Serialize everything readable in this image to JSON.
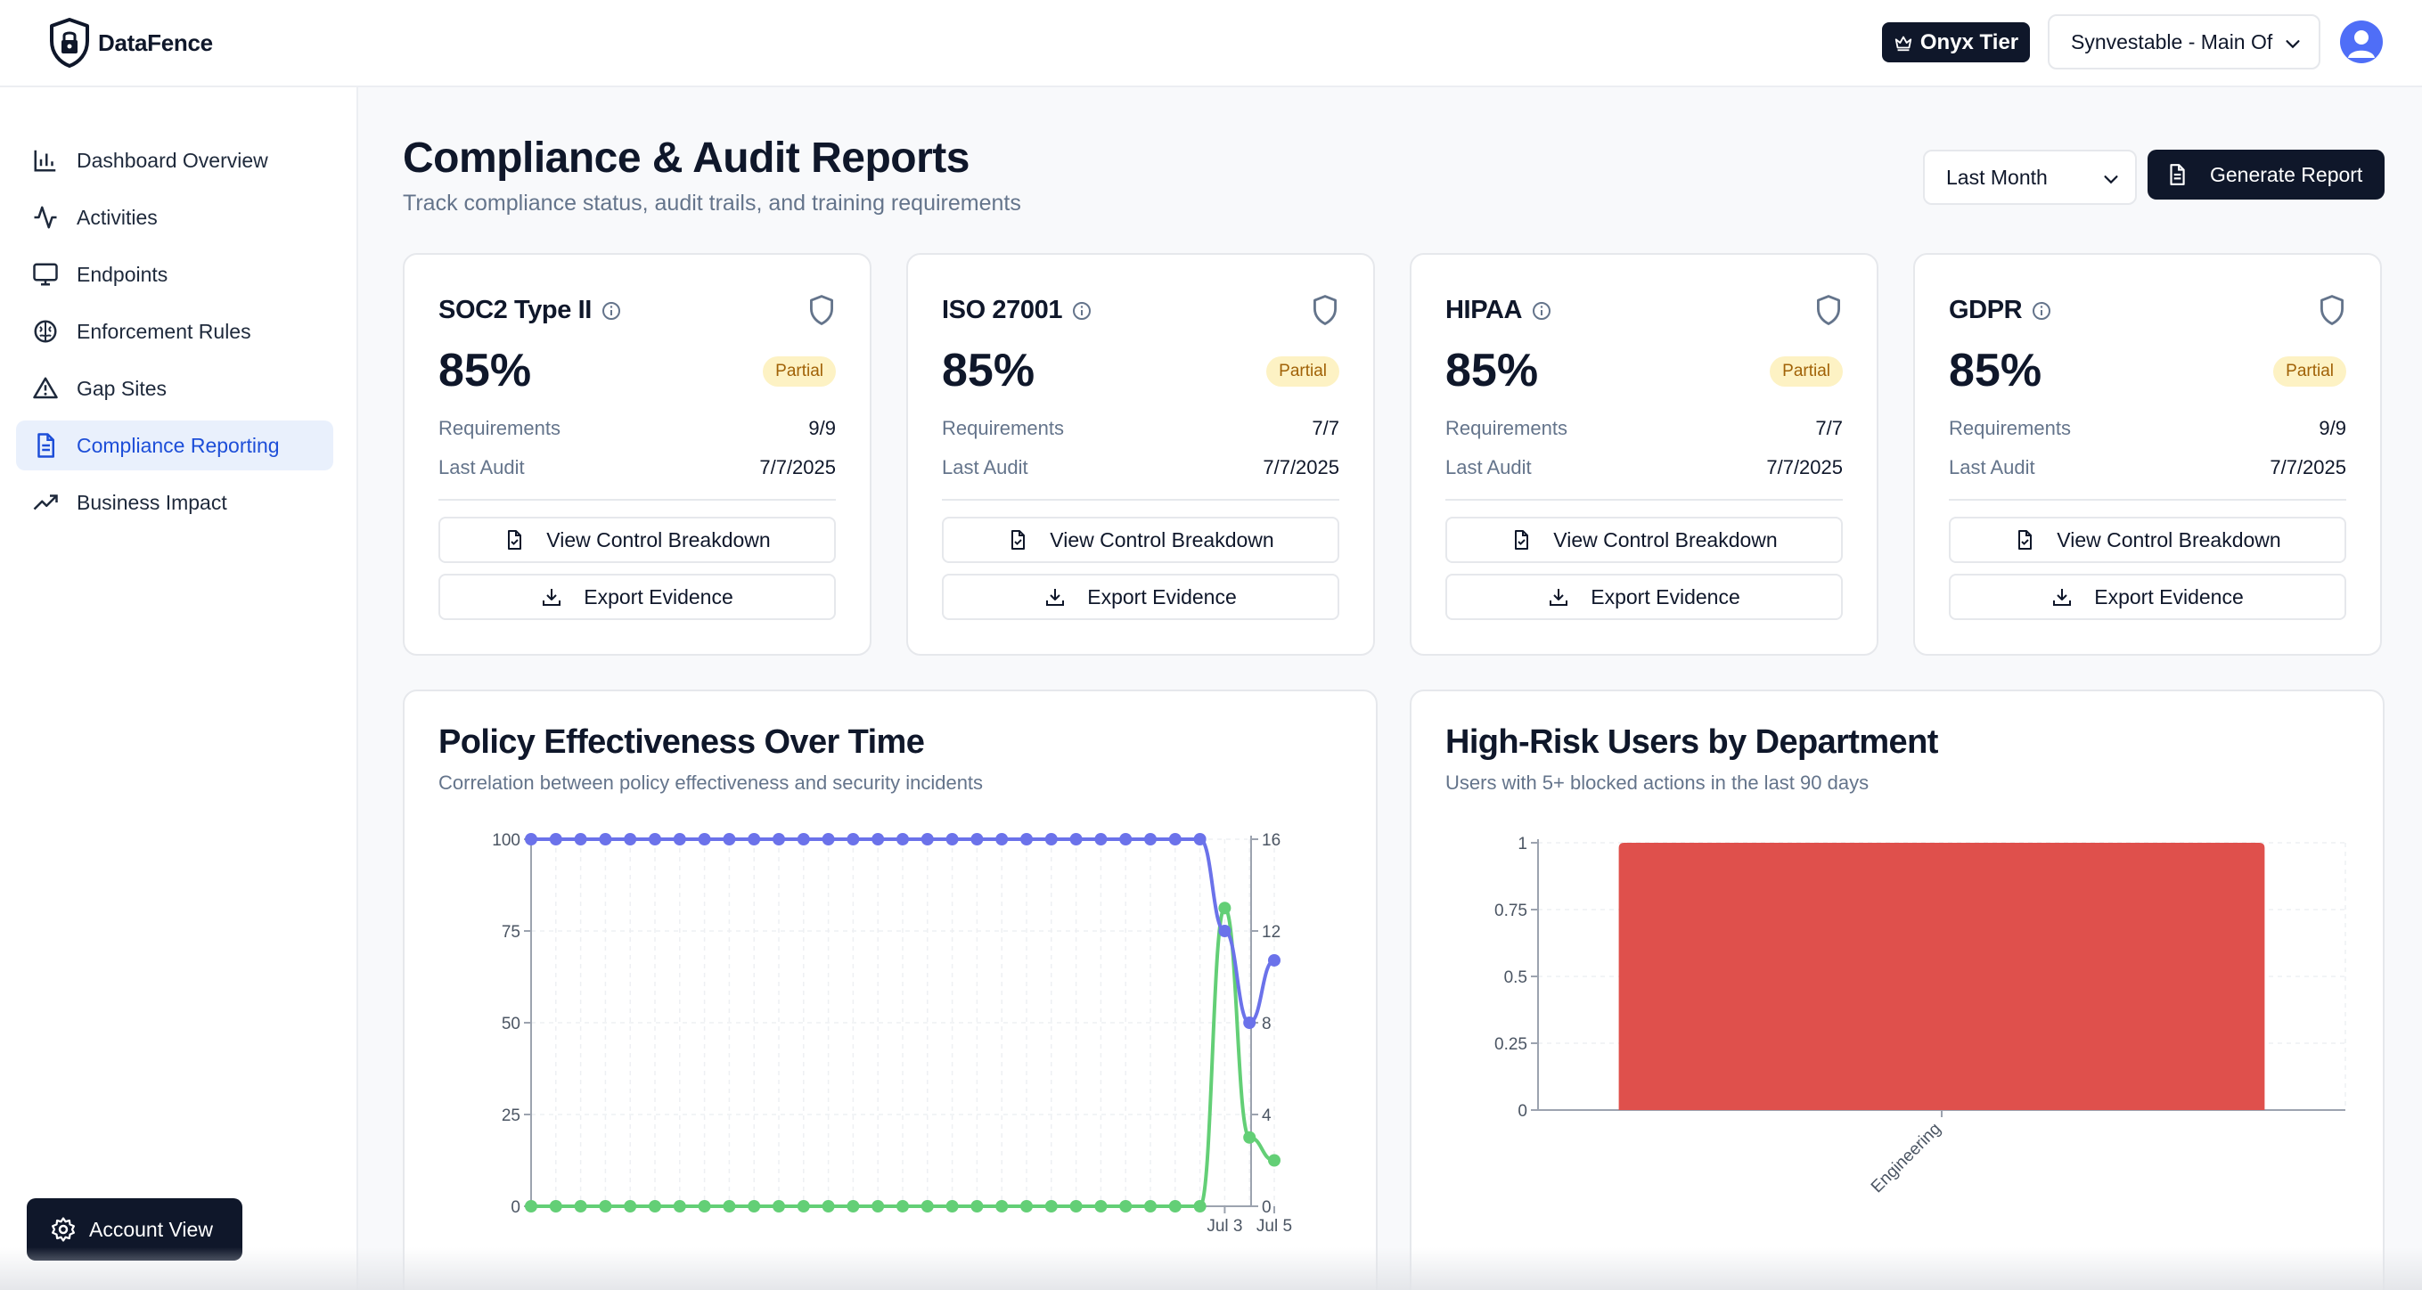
{
  "header": {
    "app_name": "DataFence",
    "tier_label": "Onyx Tier",
    "org_selected": "Synvestable - Main Of"
  },
  "sidebar": {
    "items": [
      {
        "label": "Dashboard Overview",
        "icon": "bar-chart-icon",
        "active": false
      },
      {
        "label": "Activities",
        "icon": "activity-icon",
        "active": false
      },
      {
        "label": "Endpoints",
        "icon": "monitor-icon",
        "active": false
      },
      {
        "label": "Enforcement Rules",
        "icon": "brain-icon",
        "active": false
      },
      {
        "label": "Gap Sites",
        "icon": "warning-icon",
        "active": false
      },
      {
        "label": "Compliance Reporting",
        "icon": "document-icon",
        "active": true
      },
      {
        "label": "Business Impact",
        "icon": "trending-up-icon",
        "active": false
      }
    ],
    "account_button": "Account View"
  },
  "page": {
    "title": "Compliance & Audit Reports",
    "subtitle": "Track compliance status, audit trails, and training requirements",
    "range_selected": "Last Month",
    "generate_label": "Generate Report"
  },
  "cards": [
    {
      "name": "SOC2 Type II",
      "percent": "85%",
      "status": "Partial",
      "requirements_label": "Requirements",
      "requirements": "9/9",
      "audit_label": "Last Audit",
      "last_audit": "7/7/2025",
      "btn_breakdown": "View Control Breakdown",
      "btn_export": "Export Evidence"
    },
    {
      "name": "ISO 27001",
      "percent": "85%",
      "status": "Partial",
      "requirements_label": "Requirements",
      "requirements": "7/7",
      "audit_label": "Last Audit",
      "last_audit": "7/7/2025",
      "btn_breakdown": "View Control Breakdown",
      "btn_export": "Export Evidence"
    },
    {
      "name": "HIPAA",
      "percent": "85%",
      "status": "Partial",
      "requirements_label": "Requirements",
      "requirements": "7/7",
      "audit_label": "Last Audit",
      "last_audit": "7/7/2025",
      "btn_breakdown": "View Control Breakdown",
      "btn_export": "Export Evidence"
    },
    {
      "name": "GDPR",
      "percent": "85%",
      "status": "Partial",
      "requirements_label": "Requirements",
      "requirements": "9/9",
      "audit_label": "Last Audit",
      "last_audit": "7/7/2025",
      "btn_breakdown": "View Control Breakdown",
      "btn_export": "Export Evidence"
    }
  ],
  "colors": {
    "accent": "#0f172a",
    "active_nav_bg": "#e9f0fc",
    "active_nav_text": "#1d4ed8",
    "badge_bg": "#fdf2c4",
    "badge_text": "#a16207",
    "series_effectiveness": "#6b72ea",
    "series_incidents": "#63cf76",
    "bar": "#df504c"
  },
  "chart_data": [
    {
      "type": "line",
      "title": "Policy Effectiveness Over Time",
      "subtitle": "Correlation between policy effectiveness and security incidents",
      "x_tick_labels": [
        "Jul 3",
        "Jul 5"
      ],
      "y_left": {
        "ticks": [
          "0",
          "25",
          "50",
          "75",
          "100"
        ],
        "range": [
          0,
          100
        ]
      },
      "y_right": {
        "ticks": [
          "0",
          "4",
          "8",
          "12",
          "16"
        ],
        "range": [
          0,
          16
        ]
      },
      "grid": true,
      "series": [
        {
          "axis": "left",
          "values": [
            100,
            100,
            100,
            100,
            100,
            100,
            100,
            100,
            100,
            100,
            100,
            100,
            100,
            100,
            100,
            100,
            100,
            100,
            100,
            100,
            100,
            100,
            100,
            100,
            100,
            100,
            100,
            100,
            75,
            50,
            67
          ]
        },
        {
          "axis": "right",
          "values": [
            0,
            0,
            0,
            0,
            0,
            0,
            0,
            0,
            0,
            0,
            0,
            0,
            0,
            0,
            0,
            0,
            0,
            0,
            0,
            0,
            0,
            0,
            0,
            0,
            0,
            0,
            0,
            0,
            13,
            3,
            2
          ]
        }
      ]
    },
    {
      "type": "bar",
      "title": "High-Risk Users by Department",
      "subtitle": "Users with 5+ blocked actions in the last 90 days",
      "categories": [
        "Engineering"
      ],
      "values": [
        1
      ],
      "y_ticks": [
        "0",
        "0.25",
        "0.5",
        "0.75",
        "1"
      ],
      "ylim": [
        0,
        1
      ],
      "grid": true
    }
  ]
}
